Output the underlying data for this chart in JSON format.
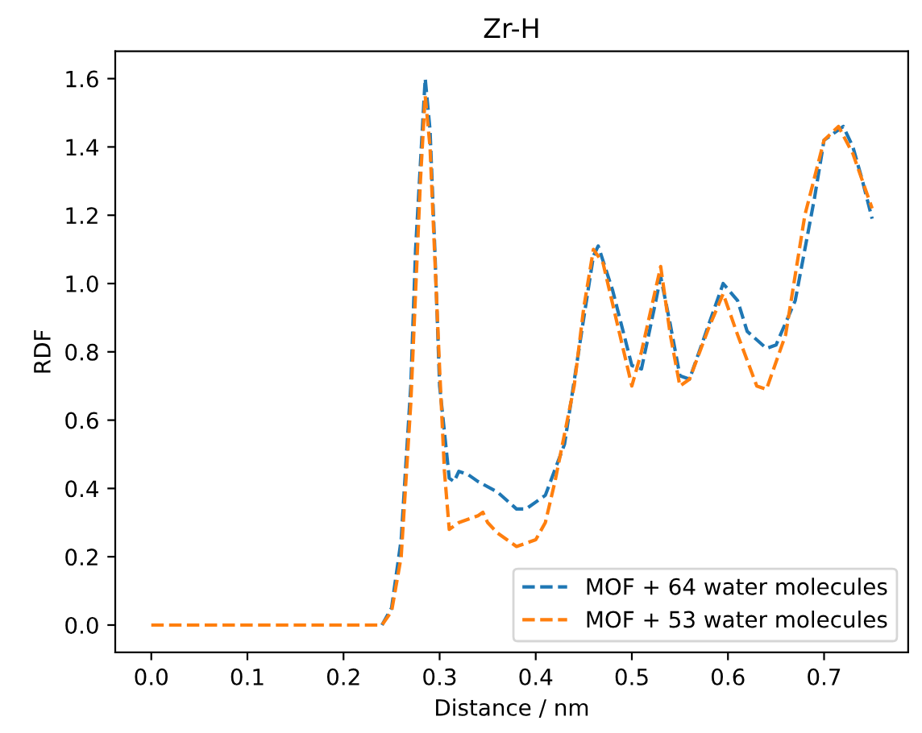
{
  "chart_data": {
    "type": "line",
    "title": "Zr-H",
    "xlabel": "Distance / nm",
    "ylabel": "RDF",
    "xlim": [
      -0.0375,
      0.7875
    ],
    "ylim": [
      -0.08,
      1.68
    ],
    "xticks": [
      {
        "value": 0,
        "label": "0.0"
      },
      0.1,
      0.2,
      0.3,
      0.4,
      0.5,
      0.6,
      0.7
    ],
    "yticks": [
      {
        "value": 0,
        "label": "0.0"
      },
      0.2,
      0.4,
      0.6,
      0.8,
      {
        "value": 1,
        "label": "1.0"
      },
      1.2,
      1.4,
      1.6
    ],
    "grid": false,
    "legend": "lower right",
    "line_style": "dashed",
    "series": [
      {
        "name": "MOF + 64 water molecules",
        "color": "#1f77b4",
        "x": [
          0.24,
          0.25,
          0.26,
          0.27,
          0.275,
          0.285,
          0.29,
          0.295,
          0.3,
          0.31,
          0.315,
          0.32,
          0.33,
          0.34,
          0.36,
          0.38,
          0.39,
          0.41,
          0.43,
          0.45,
          0.46,
          0.465,
          0.48,
          0.5,
          0.51,
          0.525,
          0.53,
          0.54,
          0.55,
          0.56,
          0.58,
          0.595,
          0.61,
          0.62,
          0.64,
          0.65,
          0.67,
          0.69,
          0.7,
          0.72,
          0.73,
          0.74,
          0.75
        ],
        "values": [
          0,
          0.05,
          0.25,
          0.7,
          1.1,
          1.6,
          1.45,
          1.1,
          0.7,
          0.43,
          0.42,
          0.45,
          0.44,
          0.42,
          0.39,
          0.34,
          0.34,
          0.38,
          0.53,
          0.9,
          1.08,
          1.11,
          0.98,
          0.76,
          0.75,
          0.95,
          1.02,
          0.88,
          0.73,
          0.72,
          0.88,
          1.0,
          0.95,
          0.86,
          0.81,
          0.82,
          0.95,
          1.25,
          1.42,
          1.46,
          1.4,
          1.3,
          1.19
        ]
      },
      {
        "name": "MOF + 53 water molecules",
        "color": "#ff7f0e",
        "x": [
          0.0,
          0.05,
          0.1,
          0.15,
          0.2,
          0.24,
          0.25,
          0.26,
          0.27,
          0.28,
          0.285,
          0.29,
          0.3,
          0.305,
          0.31,
          0.32,
          0.34,
          0.345,
          0.35,
          0.36,
          0.37,
          0.38,
          0.39,
          0.4,
          0.41,
          0.42,
          0.44,
          0.45,
          0.46,
          0.47,
          0.49,
          0.5,
          0.51,
          0.53,
          0.54,
          0.55,
          0.56,
          0.58,
          0.595,
          0.61,
          0.63,
          0.64,
          0.66,
          0.68,
          0.7,
          0.715,
          0.73,
          0.75
        ],
        "values": [
          0,
          0,
          0,
          0,
          0,
          0,
          0.04,
          0.2,
          0.65,
          1.3,
          1.55,
          1.4,
          0.75,
          0.45,
          0.28,
          0.3,
          0.32,
          0.33,
          0.3,
          0.27,
          0.25,
          0.23,
          0.24,
          0.25,
          0.3,
          0.42,
          0.7,
          0.93,
          1.1,
          1.06,
          0.82,
          0.7,
          0.8,
          1.05,
          0.85,
          0.7,
          0.72,
          0.87,
          0.97,
          0.85,
          0.7,
          0.69,
          0.85,
          1.2,
          1.42,
          1.46,
          1.38,
          1.22
        ]
      }
    ]
  }
}
